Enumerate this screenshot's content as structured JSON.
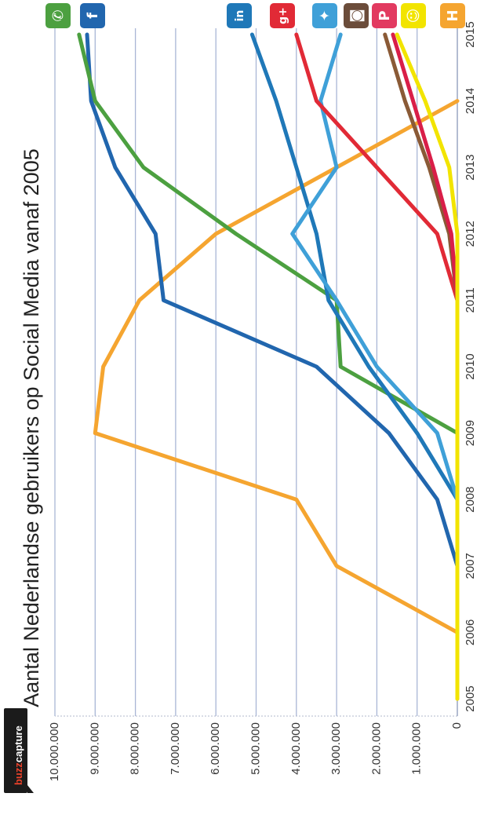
{
  "brand": {
    "prefix": "buzz",
    "suffix": "capture"
  },
  "chart_data": {
    "type": "line",
    "title": "Aantal Nederlandse gebruikers op Social Media vanaf 2005",
    "x": [
      2005,
      2006,
      2007,
      2008,
      2009,
      2010,
      2011,
      2012,
      2013,
      2014,
      2015
    ],
    "x_tick_labels": [
      "2005",
      "2006",
      "2007",
      "2008",
      "2009",
      "2010",
      "2011",
      "2012",
      "2013",
      "2014",
      "2015"
    ],
    "ylim": [
      0,
      10000000
    ],
    "y_ticks": [
      0,
      1000000,
      2000000,
      3000000,
      4000000,
      5000000,
      6000000,
      7000000,
      8000000,
      9000000,
      10000000
    ],
    "y_tick_labels": [
      "0",
      "1.000.000",
      "2.000.000",
      "3.000.000",
      "4.000.000",
      "5.000.000",
      "6.000.000",
      "7.000.000",
      "8.000.000",
      "9.000.000",
      "10.000.000"
    ],
    "grid": true,
    "legend": "icons at top",
    "series": [
      {
        "icon": "hyves-icon",
        "color": "#f5a530",
        "points": [
          [
            2005,
            0
          ],
          [
            2006,
            0
          ],
          [
            2007,
            3000000
          ],
          [
            2008,
            4000000
          ],
          [
            2009,
            9000000
          ],
          [
            2010,
            8800000
          ],
          [
            2011,
            7900000
          ],
          [
            2012,
            6000000
          ],
          [
            2013,
            3000000
          ],
          [
            2014,
            0
          ]
        ]
      },
      {
        "icon": "facebook-icon",
        "color": "#2166ae",
        "points": [
          [
            2007,
            0
          ],
          [
            2008,
            500000
          ],
          [
            2009,
            1700000
          ],
          [
            2010,
            3500000
          ],
          [
            2011,
            7300000
          ],
          [
            2012,
            7500000
          ],
          [
            2013,
            8500000
          ],
          [
            2014,
            9100000
          ],
          [
            2015,
            9200000
          ]
        ]
      },
      {
        "icon": "whatsapp-icon",
        "color": "#4ca040",
        "points": [
          [
            2009,
            0
          ],
          [
            2010,
            2900000
          ],
          [
            2011,
            3000000
          ],
          [
            2012,
            5500000
          ],
          [
            2013,
            7800000
          ],
          [
            2014,
            9000000
          ],
          [
            2015,
            9400000
          ]
        ]
      },
      {
        "icon": "linkedin-icon",
        "color": "#1f78b8",
        "points": [
          [
            2008,
            0
          ],
          [
            2009,
            1000000
          ],
          [
            2010,
            2200000
          ],
          [
            2011,
            3200000
          ],
          [
            2012,
            3500000
          ],
          [
            2013,
            4000000
          ],
          [
            2014,
            4500000
          ],
          [
            2015,
            5100000
          ]
        ]
      },
      {
        "icon": "twitter-icon",
        "color": "#3fa0d8",
        "points": [
          [
            2008,
            0
          ],
          [
            2009,
            500000
          ],
          [
            2010,
            2000000
          ],
          [
            2011,
            3000000
          ],
          [
            2012,
            4100000
          ],
          [
            2013,
            3000000
          ],
          [
            2014,
            3400000
          ],
          [
            2015,
            2900000
          ]
        ]
      },
      {
        "icon": "google-plus-icon",
        "color": "#e12a36",
        "points": [
          [
            2011,
            0
          ],
          [
            2012,
            500000
          ],
          [
            2013,
            2000000
          ],
          [
            2014,
            3500000
          ],
          [
            2015,
            4000000
          ]
        ]
      },
      {
        "icon": "instagram-icon",
        "color": "#8a5a36",
        "points": [
          [
            2011,
            0
          ],
          [
            2012,
            200000
          ],
          [
            2013,
            700000
          ],
          [
            2014,
            1300000
          ],
          [
            2015,
            1800000
          ]
        ]
      },
      {
        "icon": "pinterest-icon",
        "color": "#d91e48",
        "points": [
          [
            2011,
            0
          ],
          [
            2012,
            150000
          ],
          [
            2013,
            600000
          ],
          [
            2014,
            1100000
          ],
          [
            2015,
            1600000
          ]
        ]
      },
      {
        "icon": "snapchat-icon",
        "color": "#f2e400",
        "points": [
          [
            2005,
            0
          ],
          [
            2012,
            0
          ],
          [
            2013,
            200000
          ],
          [
            2014,
            800000
          ],
          [
            2015,
            1500000
          ]
        ]
      }
    ]
  },
  "legend_icons": [
    {
      "name": "whatsapp-icon",
      "color": "#4ca040",
      "glyph": "✆"
    },
    {
      "name": "facebook-icon",
      "color": "#2166ae",
      "glyph": "f"
    },
    {
      "name": "linkedin-icon",
      "color": "#1f78b8",
      "glyph": "in"
    },
    {
      "name": "google-plus-icon",
      "color": "#e12a36",
      "glyph": "g+"
    },
    {
      "name": "twitter-icon",
      "color": "#3fa0d8",
      "glyph": "✦"
    },
    {
      "name": "instagram-icon",
      "color": "#6b4c3a",
      "glyph": "◙"
    },
    {
      "name": "pinterest-icon",
      "color": "#e23a60",
      "glyph": "P"
    },
    {
      "name": "snapchat-icon",
      "color": "#f2e400",
      "glyph": "☺"
    },
    {
      "name": "hyves-icon",
      "color": "#f5a530",
      "glyph": "H"
    }
  ]
}
